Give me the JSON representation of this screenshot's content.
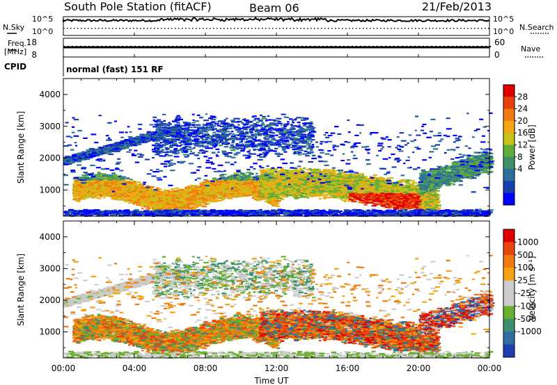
{
  "header": {
    "station": "South Pole Station (fitACF)",
    "beam": "Beam 06",
    "date": "21/Feb/2013"
  },
  "params": {
    "nsky_label": "N.Sky",
    "nsearch_label": "N.Search",
    "count_ticks": [
      "10^5",
      "10^0"
    ],
    "freq_label_1": "Freq.",
    "freq_label_2": "[MHz]",
    "freq_ticks": [
      "18",
      "8"
    ],
    "nave_label": "Nave",
    "nave_ticks": [
      "60",
      "0"
    ],
    "cpid_label": "CPID",
    "cpid_value": "normal (fast) 151 RF"
  },
  "chart_data": [
    {
      "type": "heatmap",
      "panel": "power",
      "ylabel": "Slant Range [km]",
      "ylim": [
        180,
        4500
      ],
      "y_ticks": [
        "4000",
        "3000",
        "2000",
        "1000"
      ],
      "xlim": [
        "00:00",
        "00:00"
      ],
      "colorbar_label": "Power [dB]",
      "colorbar_ticks": [
        "28",
        "24",
        "20",
        "16",
        "12",
        "8",
        "4"
      ],
      "colorbar_colors": [
        "#0000ff",
        "#1a3fb0",
        "#2e6e9e",
        "#3f8f6a",
        "#5fae3c",
        "#c7c21a",
        "#f3a712",
        "#f07b10",
        "#e8420c",
        "#e00000"
      ]
    },
    {
      "type": "heatmap",
      "panel": "velocity",
      "ylabel": "Slant Range [km]",
      "ylim": [
        180,
        4500
      ],
      "y_ticks": [
        "4000",
        "3000",
        "2000",
        "1000"
      ],
      "xlim": [
        "00:00",
        "00:00"
      ],
      "x_ticks": [
        "00:00",
        "04:00",
        "08:00",
        "12:00",
        "16:00",
        "20:00",
        "00:00"
      ],
      "xlabel": "Time UT",
      "colorbar_label": "Velocity [m s⁻¹]",
      "colorbar_ticks": [
        "1000",
        "500",
        "100",
        "25",
        "-25",
        "-100",
        "-500",
        "-1000"
      ],
      "colorbar_colors": [
        "#1f3fb0",
        "#2e6ea0",
        "#3b8f6e",
        "#6ab02f",
        "#cccccc",
        "#cccccc",
        "#f4a312",
        "#f07a10",
        "#e8450c",
        "#e00000"
      ]
    }
  ]
}
